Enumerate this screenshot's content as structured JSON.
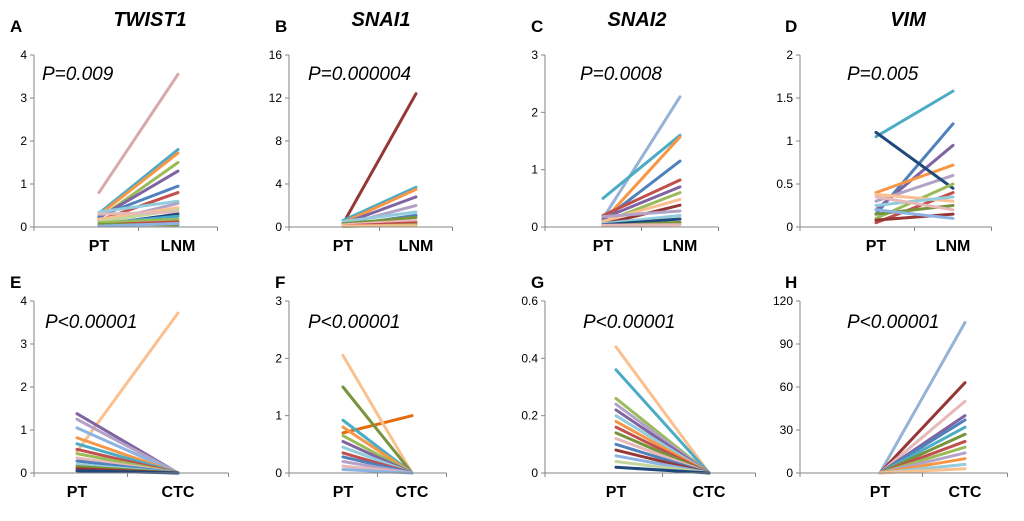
{
  "chart_data": [
    {
      "type": "line",
      "panel": "A",
      "title": "TWIST1",
      "annotation": "P=0.009",
      "categories": [
        "PT",
        "LNM"
      ],
      "yticks": [
        "0",
        "1",
        "2",
        "3",
        "4"
      ],
      "ylim": [
        0,
        4
      ],
      "series": [
        {
          "color": "#d9a8a8",
          "values": [
            0.8,
            3.55
          ]
        },
        {
          "color": "#4bacc6",
          "values": [
            0.32,
            1.8
          ]
        },
        {
          "color": "#f79646",
          "values": [
            0.28,
            1.72
          ]
        },
        {
          "color": "#9bbb59",
          "values": [
            0.2,
            1.5
          ]
        },
        {
          "color": "#8064a2",
          "values": [
            0.22,
            1.3
          ]
        },
        {
          "color": "#4f81bd",
          "values": [
            0.25,
            0.95
          ]
        },
        {
          "color": "#c0504d",
          "values": [
            0.15,
            0.8
          ]
        },
        {
          "color": "#93cddd",
          "values": [
            0.35,
            0.6
          ]
        },
        {
          "color": "#b3a2c7",
          "values": [
            0.1,
            0.55
          ]
        },
        {
          "color": "#fac090",
          "values": [
            0.18,
            0.45
          ]
        },
        {
          "color": "#c3d69b",
          "values": [
            0.12,
            0.4
          ]
        },
        {
          "color": "#e6b9b8",
          "values": [
            0.3,
            0.35
          ]
        },
        {
          "color": "#1f497d",
          "values": [
            0.05,
            0.3
          ]
        },
        {
          "color": "#4bacc6",
          "values": [
            0.08,
            0.25
          ]
        },
        {
          "color": "#9bbb59",
          "values": [
            0.1,
            0.18
          ]
        },
        {
          "color": "#c0504d",
          "values": [
            0.05,
            0.12
          ]
        },
        {
          "color": "#77933c",
          "values": [
            0.06,
            0.05
          ]
        },
        {
          "color": "#8db3e2",
          "values": [
            0.02,
            0.08
          ]
        }
      ]
    },
    {
      "type": "line",
      "panel": "B",
      "title": "SNAI1",
      "annotation": "P=0.000004",
      "categories": [
        "PT",
        "LNM"
      ],
      "yticks": [
        "0",
        "4",
        "8",
        "12",
        "16"
      ],
      "ylim": [
        0,
        16
      ],
      "series": [
        {
          "color": "#953735",
          "values": [
            0.3,
            12.4
          ]
        },
        {
          "color": "#4bacc6",
          "values": [
            0.6,
            3.7
          ]
        },
        {
          "color": "#f79646",
          "values": [
            0.4,
            3.5
          ]
        },
        {
          "color": "#8064a2",
          "values": [
            0.3,
            2.8
          ]
        },
        {
          "color": "#b3a2c7",
          "values": [
            0.2,
            2.0
          ]
        },
        {
          "color": "#93cddd",
          "values": [
            0.5,
            1.4
          ]
        },
        {
          "color": "#4f81bd",
          "values": [
            0.1,
            1.1
          ]
        },
        {
          "color": "#77933c",
          "values": [
            0.3,
            0.9
          ]
        },
        {
          "color": "#e6b9b8",
          "values": [
            0.2,
            0.6
          ]
        },
        {
          "color": "#c0504d",
          "values": [
            0.1,
            0.4
          ]
        },
        {
          "color": "#9bbb59",
          "values": [
            0.05,
            0.2
          ]
        },
        {
          "color": "#fac090",
          "values": [
            0.1,
            0.1
          ]
        }
      ]
    },
    {
      "type": "line",
      "panel": "C",
      "title": "SNAI2",
      "annotation": "P=0.0008",
      "categories": [
        "PT",
        "LNM"
      ],
      "yticks": [
        "0",
        "1",
        "2",
        "3"
      ],
      "ylim": [
        0,
        3
      ],
      "series": [
        {
          "color": "#95b3d7",
          "values": [
            0.15,
            2.27
          ]
        },
        {
          "color": "#4bacc6",
          "values": [
            0.5,
            1.6
          ]
        },
        {
          "color": "#f79646",
          "values": [
            0.1,
            1.57
          ]
        },
        {
          "color": "#4f81bd",
          "values": [
            0.12,
            1.15
          ]
        },
        {
          "color": "#c0504d",
          "values": [
            0.2,
            0.82
          ]
        },
        {
          "color": "#8064a2",
          "values": [
            0.15,
            0.7
          ]
        },
        {
          "color": "#9bbb59",
          "values": [
            0.08,
            0.6
          ]
        },
        {
          "color": "#fac090",
          "values": [
            0.1,
            0.48
          ]
        },
        {
          "color": "#953735",
          "values": [
            0.05,
            0.38
          ]
        },
        {
          "color": "#b3a2c7",
          "values": [
            0.18,
            0.28
          ]
        },
        {
          "color": "#93cddd",
          "values": [
            0.06,
            0.2
          ]
        },
        {
          "color": "#1f497d",
          "values": [
            0.04,
            0.14
          ]
        },
        {
          "color": "#77933c",
          "values": [
            0.02,
            0.08
          ]
        },
        {
          "color": "#e6b9b8",
          "values": [
            0.03,
            0.04
          ]
        }
      ]
    },
    {
      "type": "line",
      "panel": "D",
      "title": "VIM",
      "annotation": "P=0.005",
      "categories": [
        "PT",
        "LNM"
      ],
      "yticks": [
        "0",
        "0.5",
        "1",
        "1.5",
        "2"
      ],
      "ylim": [
        0,
        2
      ],
      "series": [
        {
          "color": "#4bacc6",
          "values": [
            1.05,
            1.58
          ]
        },
        {
          "color": "#4f81bd",
          "values": [
            0.15,
            1.2
          ]
        },
        {
          "color": "#8064a2",
          "values": [
            0.2,
            0.95
          ]
        },
        {
          "color": "#f79646",
          "values": [
            0.4,
            0.72
          ]
        },
        {
          "color": "#b3a2c7",
          "values": [
            0.3,
            0.6
          ]
        },
        {
          "color": "#1f497d",
          "values": [
            1.1,
            0.45
          ]
        },
        {
          "color": "#9bbb59",
          "values": [
            0.1,
            0.5
          ]
        },
        {
          "color": "#c0504d",
          "values": [
            0.05,
            0.4
          ]
        },
        {
          "color": "#fac090",
          "values": [
            0.38,
            0.3
          ]
        },
        {
          "color": "#93cddd",
          "values": [
            0.25,
            0.35
          ]
        },
        {
          "color": "#77933c",
          "values": [
            0.15,
            0.25
          ]
        },
        {
          "color": "#953735",
          "values": [
            0.08,
            0.15
          ]
        },
        {
          "color": "#e6b9b8",
          "values": [
            0.35,
            0.2
          ]
        },
        {
          "color": "#8db3e2",
          "values": [
            0.2,
            0.1
          ]
        }
      ]
    },
    {
      "type": "line",
      "panel": "E",
      "title": "",
      "annotation": "P<0.00001",
      "categories": [
        "PT",
        "CTC"
      ],
      "yticks": [
        "0",
        "1",
        "2",
        "3",
        "4"
      ],
      "ylim": [
        0,
        4
      ],
      "series": [
        {
          "color": "#fac090",
          "values": [
            0.5,
            3.72
          ]
        },
        {
          "color": "#8064a2",
          "values": [
            1.38,
            0
          ]
        },
        {
          "color": "#b3a2c7",
          "values": [
            1.25,
            0
          ]
        },
        {
          "color": "#8db3e2",
          "values": [
            1.05,
            0
          ]
        },
        {
          "color": "#f79646",
          "values": [
            0.82,
            0
          ]
        },
        {
          "color": "#4bacc6",
          "values": [
            0.68,
            0
          ]
        },
        {
          "color": "#c0504d",
          "values": [
            0.55,
            0
          ]
        },
        {
          "color": "#9bbb59",
          "values": [
            0.45,
            0
          ]
        },
        {
          "color": "#e6b9b8",
          "values": [
            0.35,
            0
          ]
        },
        {
          "color": "#4f81bd",
          "values": [
            0.28,
            0
          ]
        },
        {
          "color": "#93cddd",
          "values": [
            0.2,
            0
          ]
        },
        {
          "color": "#77933c",
          "values": [
            0.15,
            0
          ]
        },
        {
          "color": "#953735",
          "values": [
            0.1,
            0
          ]
        },
        {
          "color": "#1f497d",
          "values": [
            0.05,
            0
          ]
        }
      ]
    },
    {
      "type": "line",
      "panel": "F",
      "title": "",
      "annotation": "P<0.00001",
      "categories": [
        "PT",
        "CTC"
      ],
      "yticks": [
        "0",
        "1",
        "2",
        "3"
      ],
      "ylim": [
        0,
        3
      ],
      "series": [
        {
          "color": "#e46c0a",
          "values": [
            0.7,
            1.0
          ]
        },
        {
          "color": "#fac090",
          "values": [
            2.05,
            0
          ]
        },
        {
          "color": "#77933c",
          "values": [
            1.5,
            0
          ]
        },
        {
          "color": "#4bacc6",
          "values": [
            0.92,
            0
          ]
        },
        {
          "color": "#f79646",
          "values": [
            0.8,
            0
          ]
        },
        {
          "color": "#9bbb59",
          "values": [
            0.65,
            0
          ]
        },
        {
          "color": "#8064a2",
          "values": [
            0.55,
            0
          ]
        },
        {
          "color": "#93cddd",
          "values": [
            0.45,
            0
          ]
        },
        {
          "color": "#c0504d",
          "values": [
            0.35,
            0
          ]
        },
        {
          "color": "#4f81bd",
          "values": [
            0.28,
            0
          ]
        },
        {
          "color": "#b3a2c7",
          "values": [
            0.2,
            0
          ]
        },
        {
          "color": "#e6b9b8",
          "values": [
            0.12,
            0
          ]
        },
        {
          "color": "#8db3e2",
          "values": [
            0.06,
            0
          ]
        }
      ]
    },
    {
      "type": "line",
      "panel": "G",
      "title": "",
      "annotation": "P<0.00001",
      "categories": [
        "PT",
        "CTC"
      ],
      "yticks": [
        "0",
        "0.2",
        "0.4",
        "0.6"
      ],
      "ylim": [
        0,
        0.6
      ],
      "series": [
        {
          "color": "#fac090",
          "values": [
            0.44,
            0
          ]
        },
        {
          "color": "#4bacc6",
          "values": [
            0.36,
            0
          ]
        },
        {
          "color": "#9bbb59",
          "values": [
            0.26,
            0
          ]
        },
        {
          "color": "#b3a2c7",
          "values": [
            0.24,
            0
          ]
        },
        {
          "color": "#8064a2",
          "values": [
            0.22,
            0
          ]
        },
        {
          "color": "#93cddd",
          "values": [
            0.2,
            0
          ]
        },
        {
          "color": "#f79646",
          "values": [
            0.18,
            0
          ]
        },
        {
          "color": "#c0504d",
          "values": [
            0.16,
            0
          ]
        },
        {
          "color": "#77933c",
          "values": [
            0.14,
            0
          ]
        },
        {
          "color": "#e6b9b8",
          "values": [
            0.12,
            0
          ]
        },
        {
          "color": "#4f81bd",
          "values": [
            0.1,
            0
          ]
        },
        {
          "color": "#953735",
          "values": [
            0.08,
            0
          ]
        },
        {
          "color": "#8db3e2",
          "values": [
            0.06,
            0
          ]
        },
        {
          "color": "#c3d69b",
          "values": [
            0.04,
            0
          ]
        },
        {
          "color": "#1f497d",
          "values": [
            0.02,
            0
          ]
        }
      ]
    },
    {
      "type": "line",
      "panel": "H",
      "title": "",
      "annotation": "P<0.00001",
      "categories": [
        "PT",
        "CTC"
      ],
      "yticks": [
        "0",
        "30",
        "60",
        "90",
        "120"
      ],
      "ylim": [
        0,
        120
      ],
      "series": [
        {
          "color": "#95b3d7",
          "values": [
            0,
            105
          ]
        },
        {
          "color": "#953735",
          "values": [
            0,
            63
          ]
        },
        {
          "color": "#e6b9b8",
          "values": [
            0,
            50
          ]
        },
        {
          "color": "#8064a2",
          "values": [
            0,
            40
          ]
        },
        {
          "color": "#4f81bd",
          "values": [
            0,
            37
          ]
        },
        {
          "color": "#4bacc6",
          "values": [
            0,
            32
          ]
        },
        {
          "color": "#77933c",
          "values": [
            0,
            27
          ]
        },
        {
          "color": "#c0504d",
          "values": [
            0,
            22
          ]
        },
        {
          "color": "#9bbb59",
          "values": [
            0,
            18
          ]
        },
        {
          "color": "#b3a2c7",
          "values": [
            0,
            14
          ]
        },
        {
          "color": "#f79646",
          "values": [
            0,
            10
          ]
        },
        {
          "color": "#93cddd",
          "values": [
            0,
            6
          ]
        },
        {
          "color": "#fac090",
          "values": [
            0,
            3
          ]
        }
      ]
    }
  ]
}
